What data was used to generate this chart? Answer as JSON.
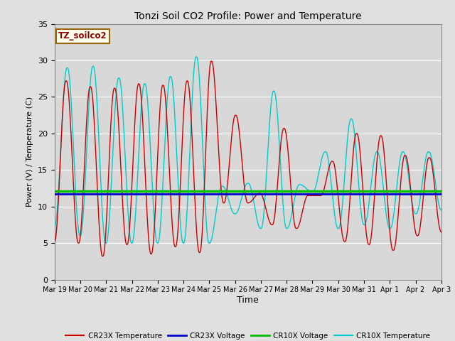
{
  "title": "Tonzi Soil CO2 Profile: Power and Temperature",
  "ylabel": "Power (V) / Temperature (C)",
  "xlabel": "Time",
  "ylim": [
    0,
    35
  ],
  "annotation_label": "TZ_soilco2",
  "annotation_color": "#8B0000",
  "annotation_bg": "#FFFFEE",
  "cr23x_voltage_value": 11.7,
  "cr10x_voltage_value": 12.1,
  "bg_color": "#E0E0E0",
  "plot_bg": "#D8D8D8",
  "grid_color": "white",
  "xtick_labels": [
    "Mar 19",
    "Mar 20",
    "Mar 21",
    "Mar 22",
    "Mar 23",
    "Mar 24",
    "Mar 25",
    "Mar 26",
    "Mar 27",
    "Mar 28",
    "Mar 29",
    "Mar 30",
    "Mar 31",
    "Apr 1",
    "Apr 2",
    "Apr 3"
  ],
  "legend_entries": [
    "CR23X Temperature",
    "CR23X Voltage",
    "CR10X Voltage",
    "CR10X Temperature"
  ],
  "legend_colors": [
    "#CC0000",
    "#0000CC",
    "#00BB00",
    "#00CCCC"
  ],
  "cr23x_temp_peaks": [
    5.2,
    27.2,
    5.0,
    26.4,
    3.2,
    26.2,
    4.8,
    26.8,
    3.5,
    26.6,
    4.5,
    27.2,
    3.7,
    29.9,
    10.5,
    22.5,
    10.5,
    11.8,
    7.5,
    20.7,
    7.0,
    11.5,
    11.5,
    16.2,
    5.2,
    20.0,
    4.8,
    19.7,
    4.0,
    17.0,
    6.0,
    16.7,
    6.5
  ],
  "cr10x_temp_peaks": [
    7.2,
    29.0,
    6.0,
    29.2,
    5.0,
    27.6,
    5.0,
    26.8,
    5.0,
    27.8,
    5.0,
    30.5,
    5.0,
    12.8,
    9.0,
    13.2,
    7.0,
    25.8,
    7.0,
    13.0,
    12.0,
    17.5,
    7.0,
    22.0,
    7.5,
    17.5,
    7.0,
    17.5,
    9.0,
    17.5,
    9.5
  ]
}
